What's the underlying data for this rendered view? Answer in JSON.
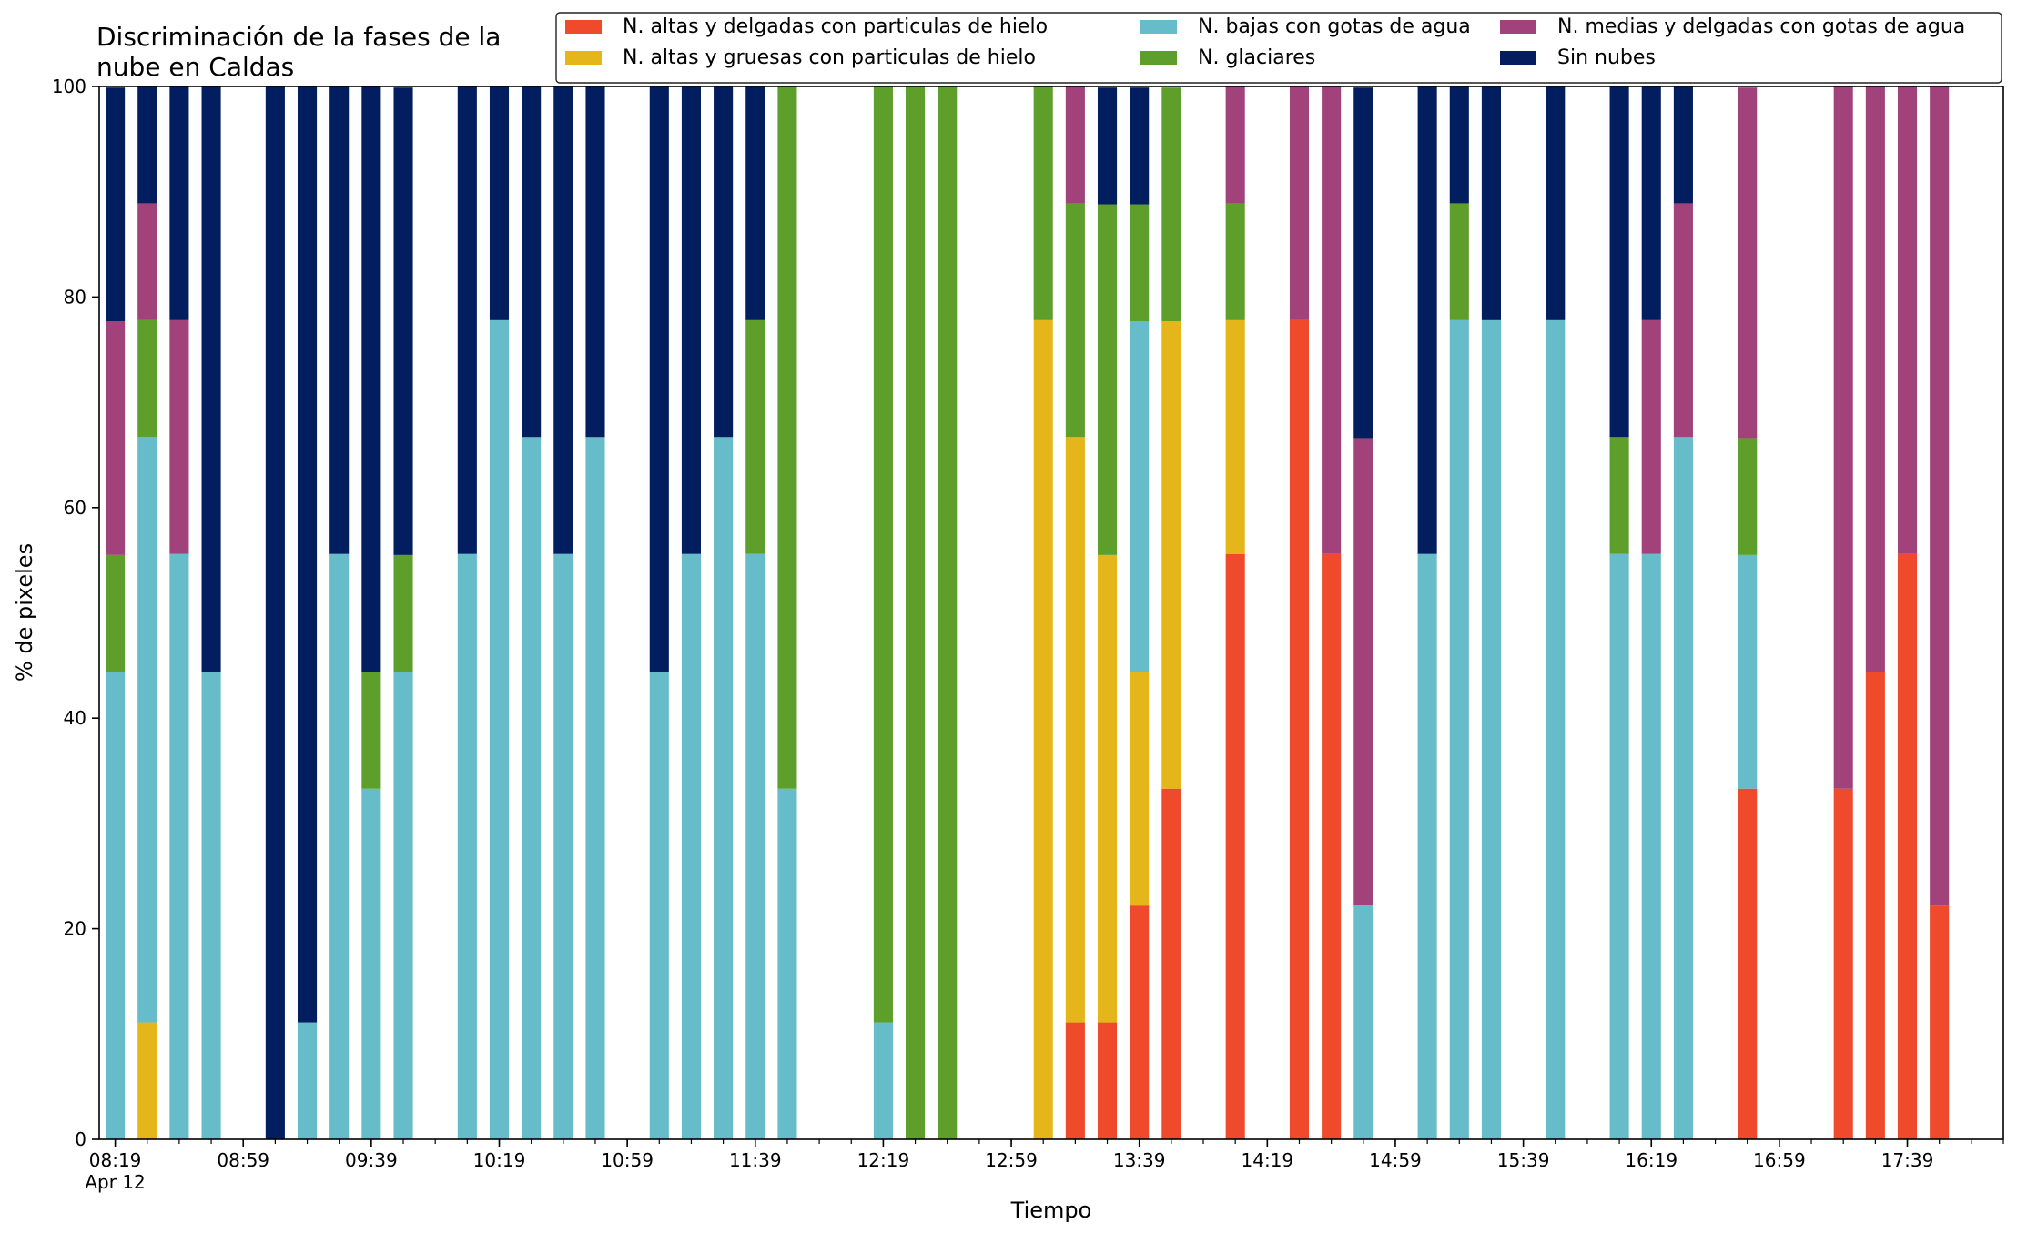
{
  "chart_data": {
    "type": "bar",
    "stacked": true,
    "title_lines": [
      "Discriminación de la fases de la",
      "nube en Caldas"
    ],
    "xlabel": "Tiempo",
    "ylabel": "% de pixeles",
    "ylim": [
      0,
      100
    ],
    "yticks": [
      0,
      20,
      40,
      60,
      80,
      100
    ],
    "xlim_minutes": [
      "08:14",
      "18:09"
    ],
    "bar_width_minutes": 6,
    "xtick_labels": [
      "08:19",
      "08:59",
      "09:39",
      "10:19",
      "10:59",
      "11:39",
      "12:19",
      "12:59",
      "13:39",
      "14:19",
      "14:59",
      "15:39",
      "16:19",
      "16:59",
      "17:39"
    ],
    "date_label": "Apr 12",
    "grid": false,
    "legend_placement": "top-right",
    "series": [
      {
        "name": "N. altas y delgadas con particulas de hielo",
        "color": "#ee4a2b"
      },
      {
        "name": "N. altas y gruesas con particulas de hielo",
        "color": "#e4b61a"
      },
      {
        "name": "N. bajas con gotas de agua",
        "color": "#66bcc9"
      },
      {
        "name": "N. glaciares",
        "color": "#5e9e2b"
      },
      {
        "name": "N. medias y delgadas con gotas de agua",
        "color": "#a1437a"
      },
      {
        "name": "Sin nubes",
        "color": "#021e5e"
      }
    ],
    "bars": [
      {
        "time": "08:19",
        "values": [
          0,
          0,
          44.4,
          11.1,
          22.2,
          22.2
        ]
      },
      {
        "time": "08:29",
        "values": [
          0,
          11.1,
          55.6,
          11.1,
          11.1,
          11.1
        ]
      },
      {
        "time": "08:39",
        "values": [
          0,
          0,
          55.6,
          0,
          22.2,
          22.2
        ]
      },
      {
        "time": "08:49",
        "values": [
          0,
          0,
          44.4,
          0,
          0,
          55.6
        ]
      },
      {
        "time": "09:09",
        "values": [
          0,
          0,
          0,
          0,
          0,
          100
        ]
      },
      {
        "time": "09:19",
        "values": [
          0,
          0,
          11.1,
          0,
          0,
          88.9
        ]
      },
      {
        "time": "09:29",
        "values": [
          0,
          0,
          55.6,
          0,
          0,
          44.4
        ]
      },
      {
        "time": "09:39",
        "values": [
          0,
          0,
          33.3,
          11.1,
          0,
          55.6
        ]
      },
      {
        "time": "09:49",
        "values": [
          0,
          0,
          44.4,
          11.1,
          0,
          44.4
        ]
      },
      {
        "time": "10:09",
        "values": [
          0,
          0,
          55.6,
          0,
          0,
          44.4
        ]
      },
      {
        "time": "10:19",
        "values": [
          0,
          0,
          77.8,
          0,
          0,
          22.2
        ]
      },
      {
        "time": "10:29",
        "values": [
          0,
          0,
          66.7,
          0,
          0,
          33.3
        ]
      },
      {
        "time": "10:39",
        "values": [
          0,
          0,
          55.6,
          0,
          0,
          44.4
        ]
      },
      {
        "time": "10:49",
        "values": [
          0,
          0,
          66.7,
          0,
          0,
          33.3
        ]
      },
      {
        "time": "11:09",
        "values": [
          0,
          0,
          44.4,
          0,
          0,
          55.6
        ]
      },
      {
        "time": "11:19",
        "values": [
          0,
          0,
          55.6,
          0,
          0,
          44.4
        ]
      },
      {
        "time": "11:29",
        "values": [
          0,
          0,
          66.7,
          0,
          0,
          33.3
        ]
      },
      {
        "time": "11:39",
        "values": [
          0,
          0,
          55.6,
          22.2,
          0,
          22.2
        ]
      },
      {
        "time": "11:49",
        "values": [
          0,
          0,
          33.3,
          66.7,
          0,
          0
        ]
      },
      {
        "time": "12:19",
        "values": [
          0,
          0,
          11.1,
          88.9,
          0,
          0
        ]
      },
      {
        "time": "12:29",
        "values": [
          0,
          0,
          0,
          100,
          0,
          0
        ]
      },
      {
        "time": "12:39",
        "values": [
          0,
          0,
          0,
          100,
          0,
          0
        ]
      },
      {
        "time": "13:09",
        "values": [
          0,
          77.8,
          0,
          22.2,
          0,
          0
        ]
      },
      {
        "time": "13:19",
        "values": [
          11.1,
          55.6,
          0,
          22.2,
          11.1,
          0
        ]
      },
      {
        "time": "13:29",
        "values": [
          11.1,
          44.4,
          0,
          33.3,
          0,
          11.1
        ]
      },
      {
        "time": "13:39",
        "values": [
          22.2,
          22.2,
          33.3,
          11.1,
          0,
          11.1
        ]
      },
      {
        "time": "13:49",
        "values": [
          33.3,
          44.4,
          0,
          22.2,
          0,
          0
        ]
      },
      {
        "time": "14:09",
        "values": [
          55.6,
          22.2,
          0,
          11.1,
          11.1,
          0
        ]
      },
      {
        "time": "14:29",
        "values": [
          77.8,
          0,
          0,
          0,
          22.2,
          0
        ]
      },
      {
        "time": "14:39",
        "values": [
          55.6,
          0,
          0,
          0,
          44.4,
          0
        ]
      },
      {
        "time": "14:49",
        "values": [
          0,
          0,
          22.2,
          0,
          44.4,
          33.3
        ]
      },
      {
        "time": "15:09",
        "values": [
          0,
          0,
          55.6,
          0,
          0,
          44.4
        ]
      },
      {
        "time": "15:19",
        "values": [
          0,
          0,
          77.8,
          11.1,
          0,
          11.1
        ]
      },
      {
        "time": "15:29",
        "values": [
          0,
          0,
          77.8,
          0,
          0,
          22.2
        ]
      },
      {
        "time": "15:49",
        "values": [
          0,
          0,
          77.8,
          0,
          0,
          22.2
        ]
      },
      {
        "time": "16:09",
        "values": [
          0,
          0,
          55.6,
          11.1,
          0,
          33.3
        ]
      },
      {
        "time": "16:19",
        "values": [
          0,
          0,
          55.6,
          0,
          22.2,
          22.2
        ]
      },
      {
        "time": "16:29",
        "values": [
          0,
          0,
          66.7,
          0,
          22.2,
          11.1
        ]
      },
      {
        "time": "16:49",
        "values": [
          33.3,
          0,
          22.2,
          11.1,
          33.3,
          0
        ]
      },
      {
        "time": "17:19",
        "values": [
          33.3,
          0,
          0,
          0,
          66.7,
          0
        ]
      },
      {
        "time": "17:29",
        "values": [
          44.4,
          0,
          0,
          0,
          55.6,
          0
        ]
      },
      {
        "time": "17:39",
        "values": [
          55.6,
          0,
          0,
          0,
          44.4,
          0
        ]
      },
      {
        "time": "17:49",
        "values": [
          22.2,
          0,
          0,
          0,
          77.8,
          0
        ]
      }
    ]
  }
}
